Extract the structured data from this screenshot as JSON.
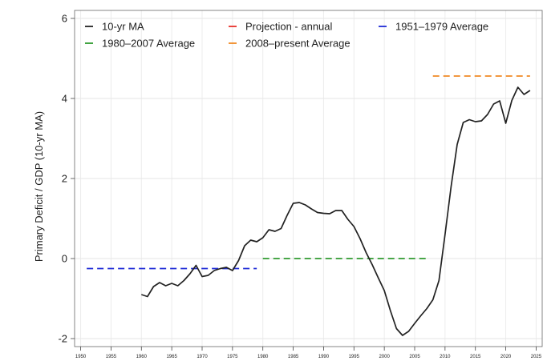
{
  "chart_data": {
    "type": "line",
    "title": "",
    "xlabel": "",
    "ylabel": "Primary Deficit / GDP (10-yr MA)",
    "xlim": [
      1949,
      2026
    ],
    "ylim": [
      -2.2,
      6.2
    ],
    "x_ticks": [
      1950,
      1955,
      1960,
      1965,
      1970,
      1975,
      1980,
      1985,
      1990,
      1995,
      2000,
      2005,
      2010,
      2015,
      2020,
      2025
    ],
    "y_ticks": [
      -2,
      0,
      2,
      4,
      6
    ],
    "grid": true,
    "legend_position": "top",
    "legend": [
      {
        "label": "10-yr MA",
        "color": "#222222",
        "style": "solid"
      },
      {
        "label": "Projection - annual",
        "color": "#e8302a",
        "style": "solid"
      },
      {
        "label": "1951–1979 Average",
        "color": "#1f2bd6",
        "style": "dashed"
      },
      {
        "label": "1980–2007 Average",
        "color": "#2e9a2e",
        "style": "dashed"
      },
      {
        "label": "2008–present Average",
        "color": "#f08a24",
        "style": "dashed"
      }
    ],
    "series": [
      {
        "name": "10-yr MA",
        "color": "#222222",
        "style": "solid",
        "x": [
          1960,
          1961,
          1962,
          1963,
          1964,
          1965,
          1966,
          1967,
          1968,
          1969,
          1970,
          1971,
          1972,
          1973,
          1974,
          1975,
          1976,
          1977,
          1978,
          1979,
          1980,
          1981,
          1982,
          1983,
          1984,
          1985,
          1986,
          1987,
          1988,
          1989,
          1990,
          1991,
          1992,
          1993,
          1994,
          1995,
          1996,
          1997,
          1998,
          1999,
          2000,
          2001,
          2002,
          2003,
          2004,
          2005,
          2006,
          2007,
          2008,
          2009,
          2010,
          2011,
          2012,
          2013,
          2014,
          2015,
          2016,
          2017,
          2018,
          2019,
          2020,
          2021,
          2022,
          2023,
          2024
        ],
        "y": [
          -0.9,
          -0.95,
          -0.7,
          -0.6,
          -0.68,
          -0.62,
          -0.68,
          -0.55,
          -0.38,
          -0.17,
          -0.45,
          -0.42,
          -0.3,
          -0.25,
          -0.22,
          -0.3,
          -0.05,
          0.32,
          0.46,
          0.42,
          0.52,
          0.72,
          0.68,
          0.75,
          1.08,
          1.38,
          1.4,
          1.34,
          1.24,
          1.15,
          1.13,
          1.12,
          1.2,
          1.2,
          0.98,
          0.8,
          0.5,
          0.15,
          -0.15,
          -0.48,
          -0.8,
          -1.3,
          -1.75,
          -1.92,
          -1.82,
          -1.62,
          -1.43,
          -1.25,
          -1.03,
          -0.55,
          0.6,
          1.8,
          2.85,
          3.4,
          3.47,
          3.42,
          3.44,
          3.6,
          3.86,
          3.94,
          3.38,
          3.95,
          4.28,
          4.1,
          4.2
        ]
      },
      {
        "name": "1951–1979 Average",
        "color": "#1f2bd6",
        "style": "dashed",
        "x": [
          1951,
          1979
        ],
        "y": [
          -0.25,
          -0.25
        ]
      },
      {
        "name": "1980–2007 Average",
        "color": "#2e9a2e",
        "style": "dashed",
        "x": [
          1980,
          2007
        ],
        "y": [
          0.0,
          0.0
        ]
      },
      {
        "name": "2008–present Average",
        "color": "#f08a24",
        "style": "dashed",
        "x": [
          2008,
          2024
        ],
        "y": [
          4.56,
          4.56
        ]
      }
    ]
  }
}
